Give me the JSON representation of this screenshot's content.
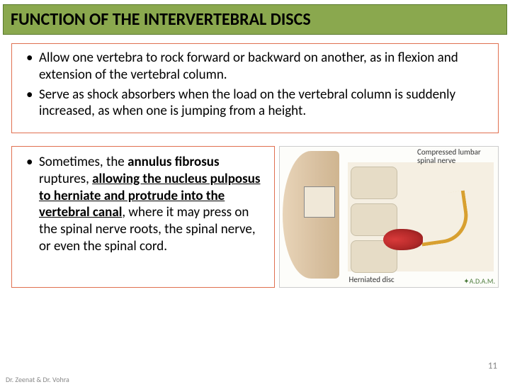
{
  "title": "FUNCTION OF THE INTERVERTEBRAL DISCS",
  "bullets_top": [
    "Allow one vertebra to rock forward or backward on another, as in flexion and extension of the vertebral column.",
    "Serve as shock absorbers when the load on the vertebral column is suddenly increased, as when one is jumping from a height."
  ],
  "bullet_bottom": {
    "pre": "Sometimes, the ",
    "b1": "annulus fibrosus",
    "mid1": " ruptures, ",
    "u1": "allowing the nucleus pulposus to herniate and protrude into the vertebral canal",
    "post": ", where it may press on the spinal nerve roots, the spinal nerve, or even the spinal cord."
  },
  "figure": {
    "label_top": "Compressed lumbar spinal nerve",
    "label_bottom": "Herniated disc",
    "credit": "✦A.D.A.M."
  },
  "page_number": "11",
  "footer": "Dr. Zeenat & Dr. Vohra"
}
